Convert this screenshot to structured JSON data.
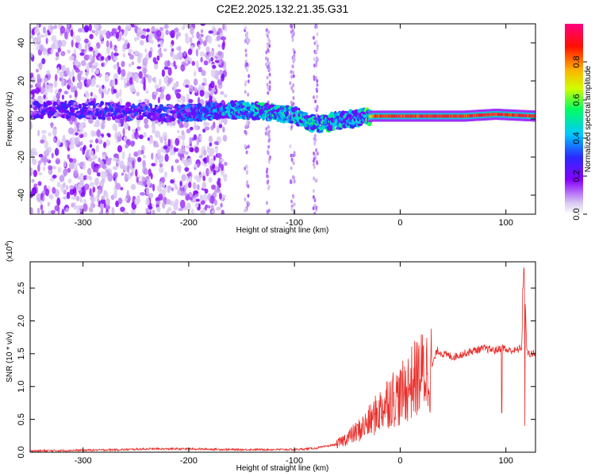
{
  "title": "C2E2.2025.132.21.35.G31",
  "chart_data": [
    {
      "type": "heatmap",
      "xlabel": "Height of straight line (km)",
      "ylabel": "Frequency (Hz)",
      "xlim": [
        -350,
        128
      ],
      "ylim": [
        -50,
        50
      ],
      "xticks": [
        -300,
        -200,
        -100,
        0,
        100
      ],
      "yticks": [
        -40,
        -20,
        0,
        20,
        40
      ],
      "colorbar": {
        "label": "Normalized spectral amplitude",
        "range": [
          0,
          1
        ],
        "ticks": [
          "0.0",
          "0.2",
          "0.4",
          "0.6",
          "0.8"
        ],
        "colors": [
          "#ffffff",
          "#d8c8f0",
          "#8800ff",
          "#2a2aff",
          "#00c8ff",
          "#00ff60",
          "#d0ff00",
          "#ffb000",
          "#ff1000",
          "#ff0080"
        ]
      },
      "ridge": [
        {
          "x": -320,
          "f": 5,
          "amp": 0.28
        },
        {
          "x": -205,
          "f": 3,
          "amp": 0.35
        },
        {
          "x": -160,
          "f": 5,
          "amp": 0.45
        },
        {
          "x": -130,
          "f": 4,
          "amp": 0.5
        },
        {
          "x": -100,
          "f": 2,
          "amp": 0.5
        },
        {
          "x": -80,
          "f": -3,
          "amp": 0.5
        },
        {
          "x": -60,
          "f": -1,
          "amp": 0.5
        },
        {
          "x": -35,
          "f": 1,
          "amp": 0.45
        },
        {
          "x": -25,
          "f": 1.5,
          "amp": 0.9
        },
        {
          "x": 0,
          "f": 1.5,
          "amp": 0.95
        },
        {
          "x": 60,
          "f": 1.5,
          "amp": 0.95
        },
        {
          "x": 90,
          "f": 2.5,
          "amp": 0.95
        },
        {
          "x": 128,
          "f": 1.5,
          "amp": 0.95
        }
      ]
    },
    {
      "type": "line",
      "xlabel": "Height of straight line (km)",
      "ylabel": "SNR (10 * v/v)",
      "yscale_label": "(x10",
      "yscale_exp": "4",
      "xlim": [
        -350,
        128
      ],
      "ylim": [
        0,
        2.9
      ],
      "xticks": [
        -300,
        -200,
        -100,
        0,
        100
      ],
      "yticks": [
        "0.0",
        "0.5",
        "1.0",
        "1.5",
        "2.0",
        "2.5"
      ],
      "series": [
        {
          "color": "#e8302c",
          "x": [
            -350,
            -300,
            -260,
            -240,
            -200,
            -160,
            -130,
            -100,
            -80,
            -60,
            -50,
            -40,
            -30,
            -20,
            -10,
            0,
            10,
            20,
            30,
            35,
            40,
            50,
            60,
            70,
            80,
            90,
            98,
            100,
            110,
            115,
            117,
            120,
            128
          ],
          "y": [
            0.02,
            0.03,
            0.04,
            0.05,
            0.05,
            0.04,
            0.04,
            0.04,
            0.06,
            0.12,
            0.22,
            0.32,
            0.45,
            0.62,
            0.82,
            0.85,
            1.05,
            1.2,
            1.3,
            1.55,
            1.5,
            1.45,
            1.5,
            1.55,
            1.58,
            1.55,
            1.6,
            1.55,
            1.55,
            1.6,
            2.85,
            1.5,
            1.5
          ]
        }
      ]
    }
  ]
}
